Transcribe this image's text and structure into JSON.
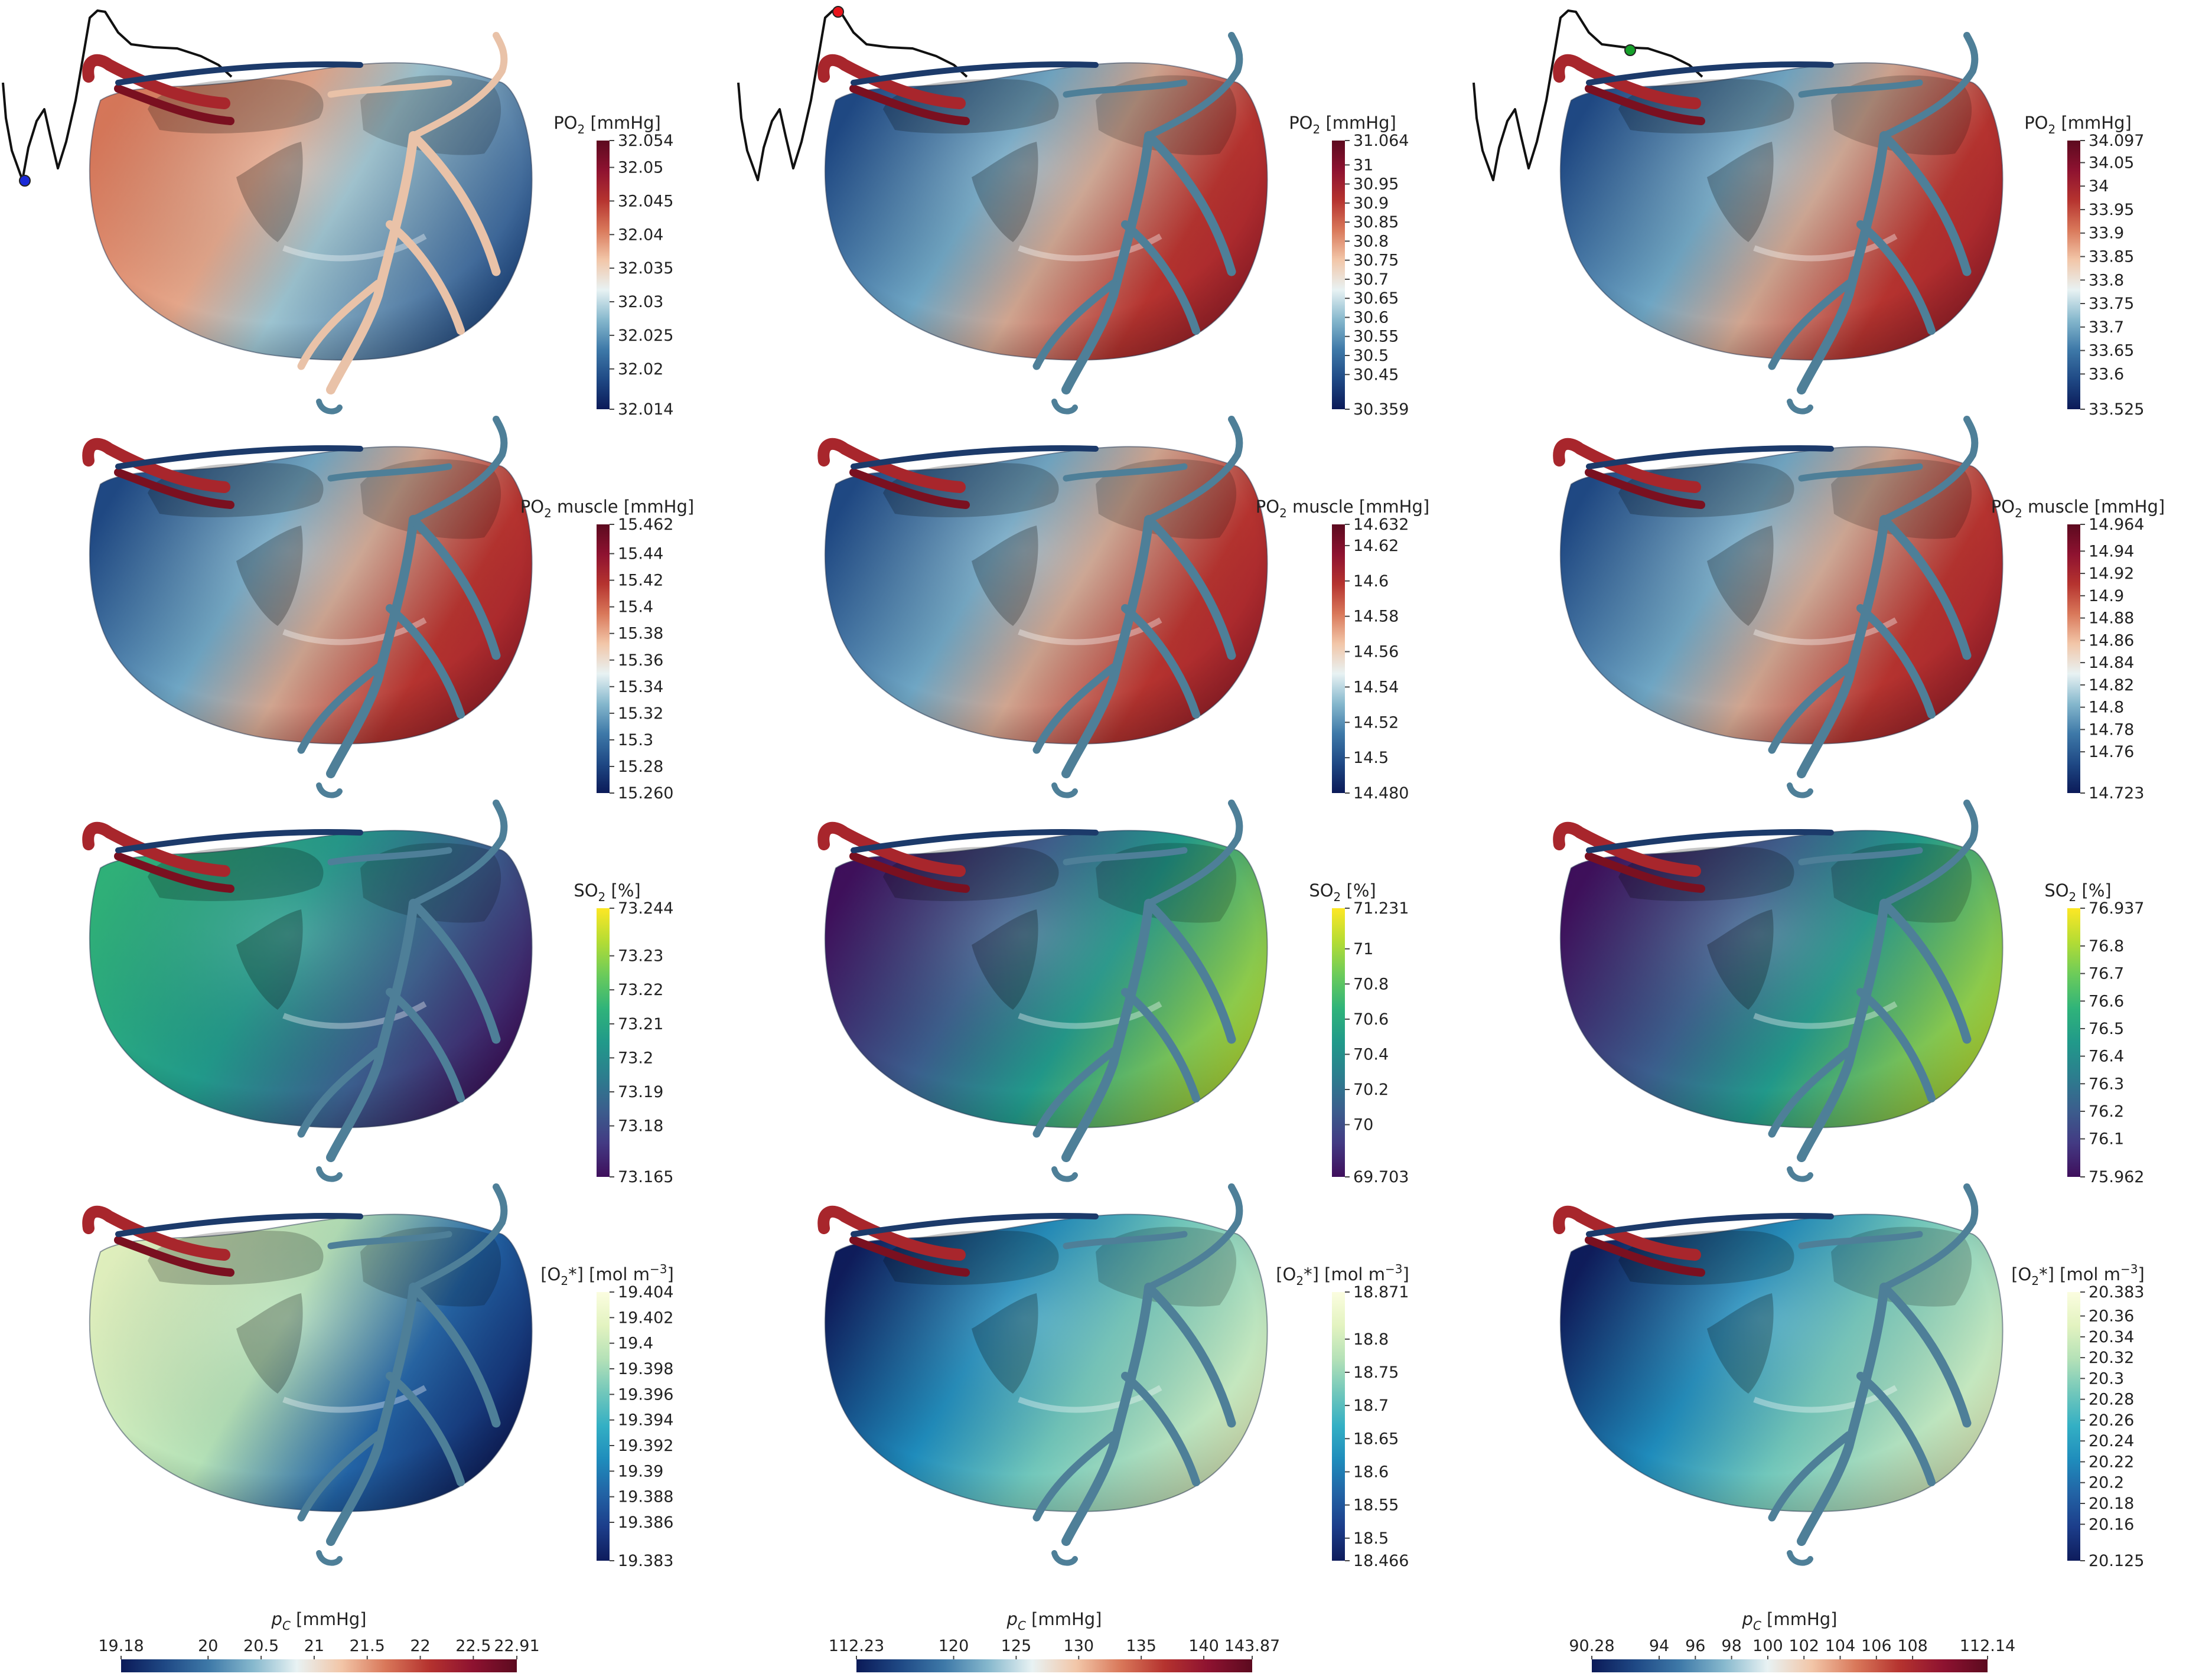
{
  "colors": {
    "rdbu": [
      "#0b1a58",
      "#1f4985",
      "#3e79a8",
      "#86b8cd",
      "#e8f2f3",
      "#f2c6a8",
      "#d9785a",
      "#b5332f",
      "#8e1230",
      "#5c0a1f"
    ],
    "viridis": [
      "#3f0f5c",
      "#433a83",
      "#3b5e8d",
      "#2c7e8e",
      "#21998a",
      "#2fb37a",
      "#6acb5b",
      "#b4dc34",
      "#fde725"
    ],
    "ylgnbu": [
      "#0e1c5c",
      "#1c3d8a",
      "#2263a5",
      "#1f8cbc",
      "#33afc4",
      "#71c7bb",
      "#b4e1b7",
      "#e3f3c0",
      "#fbfde0"
    ],
    "ecg": "#111111",
    "marker_col1": "#1a2ad8",
    "marker_col2": "#e8141b",
    "marker_col3": "#16a02a"
  },
  "columns": [
    {
      "marker": "blue",
      "rows": [
        {
          "colormap": "rdbu",
          "title_main": "PO",
          "title_sub": "2",
          "title_rest": " [mmHg]",
          "heart_pattern": "left_warm",
          "ticks": [
            "32.054",
            "32.05",
            "32.045",
            "32.04",
            "32.035",
            "32.03",
            "32.025",
            "32.02",
            "32.014"
          ],
          "min": 32.014,
          "max": 32.054,
          "tick_values": [
            32.054,
            32.05,
            32.045,
            32.04,
            32.035,
            32.03,
            32.025,
            32.02,
            32.014
          ]
        },
        {
          "colormap": "rdbu",
          "title_main": "PO",
          "title_sub": "2",
          "title_rest": " muscle [mmHg]",
          "heart_pattern": "right_warm",
          "ticks": [
            "15.462",
            "15.44",
            "15.42",
            "15.4",
            "15.38",
            "15.36",
            "15.34",
            "15.32",
            "15.3",
            "15.28",
            "15.260"
          ],
          "min": 15.26,
          "max": 15.462,
          "tick_values": [
            15.462,
            15.44,
            15.42,
            15.4,
            15.38,
            15.36,
            15.34,
            15.32,
            15.3,
            15.28,
            15.26
          ]
        },
        {
          "colormap": "viridis",
          "title_main": "SO",
          "title_sub": "2",
          "title_rest": " [%]",
          "heart_pattern": "left_high",
          "ticks": [
            "73.244",
            "73.23",
            "73.22",
            "73.21",
            "73.2",
            "73.19",
            "73.18",
            "73.165"
          ],
          "min": 73.165,
          "max": 73.244,
          "tick_values": [
            73.244,
            73.23,
            73.22,
            73.21,
            73.2,
            73.19,
            73.18,
            73.165
          ]
        },
        {
          "colormap": "ylgnbu",
          "title_main": "[O",
          "title_sub": "2",
          "title_rest": "*] [mol m",
          "title_sup": "−3",
          "title_end": "]",
          "heart_pattern": "left_high",
          "ticks": [
            "19.404",
            "19.402",
            "19.4",
            "19.398",
            "19.396",
            "19.394",
            "19.392",
            "19.39",
            "19.388",
            "19.386",
            "19.383"
          ],
          "min": 19.383,
          "max": 19.404,
          "tick_values": [
            19.404,
            19.402,
            19.4,
            19.398,
            19.396,
            19.394,
            19.392,
            19.39,
            19.388,
            19.386,
            19.383
          ]
        }
      ],
      "pc": {
        "title_main": "p",
        "title_sub": "C",
        "title_rest": " [mmHg]",
        "ticks": [
          "19.18",
          "20",
          "20.5",
          "21",
          "21.5",
          "22",
          "22.5",
          "22.91"
        ],
        "tick_values": [
          19.18,
          20,
          20.5,
          21,
          21.5,
          22,
          22.5,
          22.91
        ],
        "min": 19.18,
        "max": 22.91
      }
    },
    {
      "marker": "red",
      "rows": [
        {
          "colormap": "rdbu",
          "title_main": "PO",
          "title_sub": "2",
          "title_rest": " [mmHg]",
          "heart_pattern": "right_warm",
          "ticks": [
            "31.064",
            "31",
            "30.95",
            "30.9",
            "30.85",
            "30.8",
            "30.75",
            "30.7",
            "30.65",
            "30.6",
            "30.55",
            "30.5",
            "30.45",
            "30.359"
          ],
          "min": 30.359,
          "max": 31.064,
          "tick_values": [
            31.064,
            31,
            30.95,
            30.9,
            30.85,
            30.8,
            30.75,
            30.7,
            30.65,
            30.6,
            30.55,
            30.5,
            30.45,
            30.359
          ]
        },
        {
          "colormap": "rdbu",
          "title_main": "PO",
          "title_sub": "2",
          "title_rest": " muscle [mmHg]",
          "heart_pattern": "right_warm",
          "ticks": [
            "14.632",
            "14.62",
            "14.6",
            "14.58",
            "14.56",
            "14.54",
            "14.52",
            "14.5",
            "14.480"
          ],
          "min": 14.48,
          "max": 14.632,
          "tick_values": [
            14.632,
            14.62,
            14.6,
            14.58,
            14.56,
            14.54,
            14.52,
            14.5,
            14.48
          ]
        },
        {
          "colormap": "viridis",
          "title_main": "SO",
          "title_sub": "2",
          "title_rest": " [%]",
          "heart_pattern": "right_high",
          "ticks": [
            "71.231",
            "71",
            "70.8",
            "70.6",
            "70.4",
            "70.2",
            "70",
            "69.703"
          ],
          "min": 69.703,
          "max": 71.231,
          "tick_values": [
            71.231,
            71,
            70.8,
            70.6,
            70.4,
            70.2,
            70,
            69.703
          ]
        },
        {
          "colormap": "ylgnbu",
          "title_main": "[O",
          "title_sub": "2",
          "title_rest": "*] [mol m",
          "title_sup": "−3",
          "title_end": "]",
          "heart_pattern": "right_high",
          "ticks": [
            "18.871",
            "18.8",
            "18.75",
            "18.7",
            "18.65",
            "18.6",
            "18.55",
            "18.5",
            "18.466"
          ],
          "min": 18.466,
          "max": 18.871,
          "tick_values": [
            18.871,
            18.8,
            18.75,
            18.7,
            18.65,
            18.6,
            18.55,
            18.5,
            18.466
          ]
        }
      ],
      "pc": {
        "title_main": "p",
        "title_sub": "C",
        "title_rest": " [mmHg]",
        "ticks": [
          "112.23",
          "120",
          "125",
          "130",
          "135",
          "140",
          "143.87"
        ],
        "tick_values": [
          112.23,
          120,
          125,
          130,
          135,
          140,
          143.87
        ],
        "min": 112.23,
        "max": 143.87
      }
    },
    {
      "marker": "green",
      "rows": [
        {
          "colormap": "rdbu",
          "title_main": "PO",
          "title_sub": "2",
          "title_rest": " [mmHg]",
          "heart_pattern": "right_warm",
          "ticks": [
            "34.097",
            "34.05",
            "34",
            "33.95",
            "33.9",
            "33.85",
            "33.8",
            "33.75",
            "33.7",
            "33.65",
            "33.6",
            "33.525"
          ],
          "min": 33.525,
          "max": 34.097,
          "tick_values": [
            34.097,
            34.05,
            34,
            33.95,
            33.9,
            33.85,
            33.8,
            33.75,
            33.7,
            33.65,
            33.6,
            33.525
          ]
        },
        {
          "colormap": "rdbu",
          "title_main": "PO",
          "title_sub": "2",
          "title_rest": " muscle [mmHg]",
          "heart_pattern": "right_warm",
          "ticks": [
            "14.964",
            "14.94",
            "14.92",
            "14.9",
            "14.88",
            "14.86",
            "14.84",
            "14.82",
            "14.8",
            "14.78",
            "14.76",
            "14.723"
          ],
          "min": 14.723,
          "max": 14.964,
          "tick_values": [
            14.964,
            14.94,
            14.92,
            14.9,
            14.88,
            14.86,
            14.84,
            14.82,
            14.8,
            14.78,
            14.76,
            14.723
          ]
        },
        {
          "colormap": "viridis",
          "title_main": "SO",
          "title_sub": "2",
          "title_rest": " [%]",
          "heart_pattern": "right_high",
          "ticks": [
            "76.937",
            "76.8",
            "76.7",
            "76.6",
            "76.5",
            "76.4",
            "76.3",
            "76.2",
            "76.1",
            "75.962"
          ],
          "min": 75.962,
          "max": 76.937,
          "tick_values": [
            76.937,
            76.8,
            76.7,
            76.6,
            76.5,
            76.4,
            76.3,
            76.2,
            76.1,
            75.962
          ]
        },
        {
          "colormap": "ylgnbu",
          "title_main": "[O",
          "title_sub": "2",
          "title_rest": "*] [mol m",
          "title_sup": "−3",
          "title_end": "]",
          "heart_pattern": "right_high",
          "ticks": [
            "20.383",
            "20.36",
            "20.34",
            "20.32",
            "20.3",
            "20.28",
            "20.26",
            "20.24",
            "20.22",
            "20.2",
            "20.18",
            "20.16",
            "20.125"
          ],
          "min": 20.125,
          "max": 20.383,
          "tick_values": [
            20.383,
            20.36,
            20.34,
            20.32,
            20.3,
            20.28,
            20.26,
            20.24,
            20.22,
            20.2,
            20.18,
            20.16,
            20.125
          ]
        }
      ],
      "pc": {
        "title_main": "p",
        "title_sub": "C",
        "title_rest": " [mmHg]",
        "ticks": [
          "90.28",
          "94",
          "96",
          "98",
          "100",
          "102",
          "104",
          "106",
          "108",
          "112.14"
        ],
        "tick_values": [
          90.28,
          94,
          96,
          98,
          100,
          102,
          104,
          106,
          108,
          112.14
        ],
        "min": 90.28,
        "max": 112.14
      }
    }
  ]
}
